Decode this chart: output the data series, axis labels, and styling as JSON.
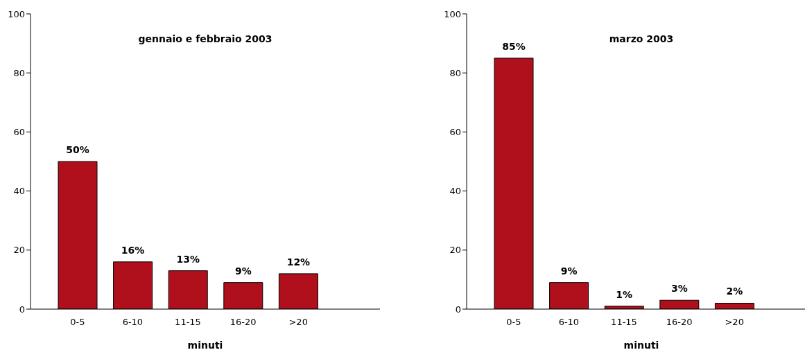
{
  "chart_data": [
    {
      "type": "bar",
      "title": "gennaio e febbraio 2003",
      "xlabel": "minuti",
      "categories": [
        "0-5",
        "6-10",
        "11-15",
        "16-20",
        ">20"
      ],
      "values": [
        50,
        16,
        13,
        9,
        12
      ],
      "value_labels": [
        "50%",
        "16%",
        "13%",
        "9%",
        "12%"
      ],
      "color": "#b0101c",
      "ylim": [
        0,
        100
      ],
      "yticks": [
        0,
        20,
        40,
        60,
        80,
        100
      ],
      "grid": false
    },
    {
      "type": "bar",
      "title": "marzo 2003",
      "xlabel": "minuti",
      "categories": [
        "0-5",
        "6-10",
        "11-15",
        "16-20",
        ">20"
      ],
      "values": [
        85,
        9,
        1,
        3,
        2
      ],
      "value_labels": [
        "85%",
        "9%",
        "1%",
        "3%",
        "2%"
      ],
      "color": "#b0101c",
      "ylim": [
        0,
        100
      ],
      "yticks": [
        0,
        20,
        40,
        60,
        80,
        100
      ],
      "grid": false
    }
  ]
}
